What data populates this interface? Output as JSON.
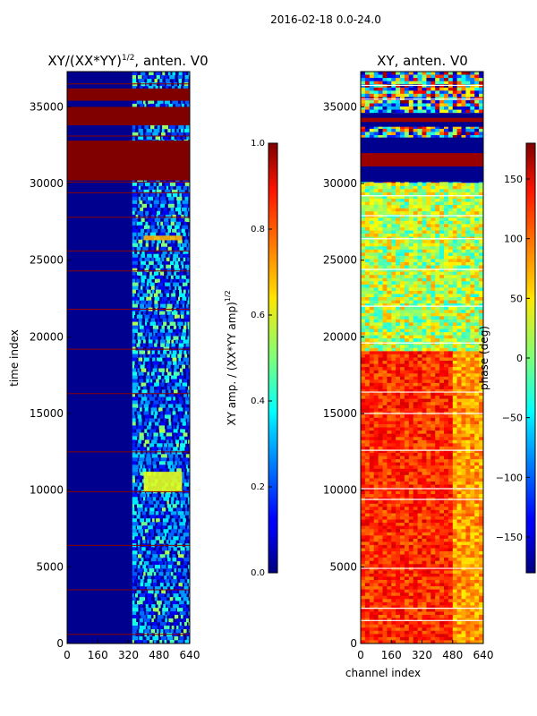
{
  "suptitle": "2016-02-18 0.0-24.0",
  "chart_data": [
    {
      "type": "heatmap",
      "title": "XY/(XX*YY)^{1/2}, anten. V0",
      "title_main": "XY/(XX*YY)",
      "title_exp": "1/2",
      "title_tail": ", anten. V0",
      "xlabel": "",
      "ylabel": "time index",
      "xlim": [
        0,
        640
      ],
      "ylim": [
        0,
        37300
      ],
      "x_ticks": [
        0,
        160,
        320,
        480,
        640
      ],
      "y_ticks": [
        0,
        5000,
        10000,
        15000,
        20000,
        25000,
        30000,
        35000
      ],
      "colorbar": {
        "label": "XY amp. / (XX*YY amp)^{1/2}",
        "label_main": "XY amp. / (XX*YY amp)",
        "label_exp": "1/2",
        "vmin": 0.0,
        "vmax": 1.0,
        "ticks": [
          "0.0",
          "0.2",
          "0.4",
          "0.6",
          "0.8",
          "1.0"
        ]
      },
      "solid_bands": [
        {
          "y0": 30200,
          "y1": 32800,
          "value": 1.0
        },
        {
          "y0": 33800,
          "y1": 35000,
          "value": 1.0
        },
        {
          "y0": 35400,
          "y1": 36200,
          "value": 1.0
        }
      ],
      "flag_lines_y": [
        600,
        3500,
        6400,
        9900,
        12500,
        16300,
        19200,
        21800,
        24300,
        25600,
        27800,
        29400,
        30100,
        33100,
        36500
      ],
      "hot_patches": [
        {
          "x0": 400,
          "x1": 600,
          "y0": 9900,
          "y1": 11200,
          "value": 0.6
        },
        {
          "x0": 400,
          "x1": 600,
          "y0": 26300,
          "y1": 26600,
          "value": 0.7
        }
      ],
      "active_channel_range": [
        340,
        640
      ]
    },
    {
      "type": "heatmap",
      "title": "XY, anten. V0",
      "xlabel": "channel index",
      "ylabel": "",
      "xlim": [
        0,
        640
      ],
      "ylim": [
        0,
        37300
      ],
      "x_ticks": [
        0,
        160,
        320,
        480,
        640
      ],
      "y_ticks": [
        0,
        5000,
        10000,
        15000,
        20000,
        25000,
        30000,
        35000
      ],
      "colorbar": {
        "label": "phase (deg)",
        "vmin": -180,
        "vmax": 180,
        "ticks": [
          "150",
          "100",
          "50",
          "0",
          "−50",
          "−100",
          "−150"
        ],
        "tick_values": [
          150,
          100,
          50,
          0,
          -50,
          -100,
          -150
        ]
      },
      "dark_bands": [
        {
          "y0": 30100,
          "y1": 33000
        },
        {
          "y0": 33700,
          "y1": 34600
        }
      ],
      "gap_lines_y": [
        1500,
        2300,
        4900,
        9400,
        10100,
        12600,
        15000,
        16400,
        19600,
        22000,
        24400,
        26400,
        27900,
        29200,
        35500,
        36400
      ],
      "warm_region": {
        "y0": 0,
        "y1": 19000,
        "value": 150
      },
      "cool_region": {
        "y0": 19000,
        "y1": 30000,
        "value": 20
      }
    }
  ]
}
